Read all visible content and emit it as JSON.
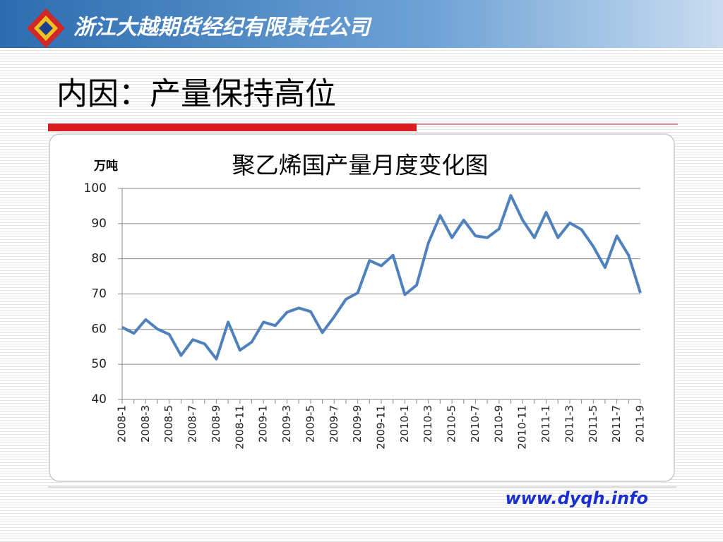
{
  "header": {
    "company": "浙江大越期货经纪有限责任公司"
  },
  "slide_title": "内因：产量保持高位",
  "footer": {
    "url": "www.dyqh.info"
  },
  "chart_data": {
    "type": "line",
    "title": "聚乙烯国产量月度变化图",
    "y_label": "万吨",
    "categories": [
      "2008-1",
      null,
      "2008-3",
      null,
      "2008-5",
      null,
      "2008-7",
      null,
      "2008-9",
      null,
      "2008-11",
      null,
      "2009-1",
      null,
      "2009-3",
      null,
      "2009-5",
      null,
      "2009-7",
      null,
      "2009-9",
      null,
      "2009-11",
      null,
      "2010-1",
      null,
      "2010-3",
      null,
      "2010-5",
      null,
      "2010-7",
      null,
      "2010-9",
      null,
      "2010-11",
      null,
      "2011-1",
      null,
      "2011-3",
      null,
      "2011-5",
      null,
      "2011-7",
      null,
      "2011-9"
    ],
    "series": [
      {
        "name": "聚乙烯国产量",
        "color": "#4f81bd",
        "values": [
          60.5,
          58.8,
          62.7,
          60,
          58.5,
          52.5,
          57,
          55.8,
          51.5,
          62,
          54,
          56.3,
          62,
          61,
          64.8,
          66,
          65,
          59,
          63.5,
          68.5,
          70.3,
          79.5,
          78,
          81,
          69.8,
          72.5,
          84.5,
          92.3,
          86,
          91,
          86.5,
          86,
          88.5,
          98,
          91,
          86,
          93.2,
          86,
          90.2,
          88.3,
          83.5,
          77.5,
          86.5,
          81,
          70.3
        ]
      }
    ],
    "ylim": [
      40,
      100
    ],
    "yticks": [
      40,
      50,
      60,
      70,
      80,
      90,
      100
    ],
    "grid": true
  }
}
